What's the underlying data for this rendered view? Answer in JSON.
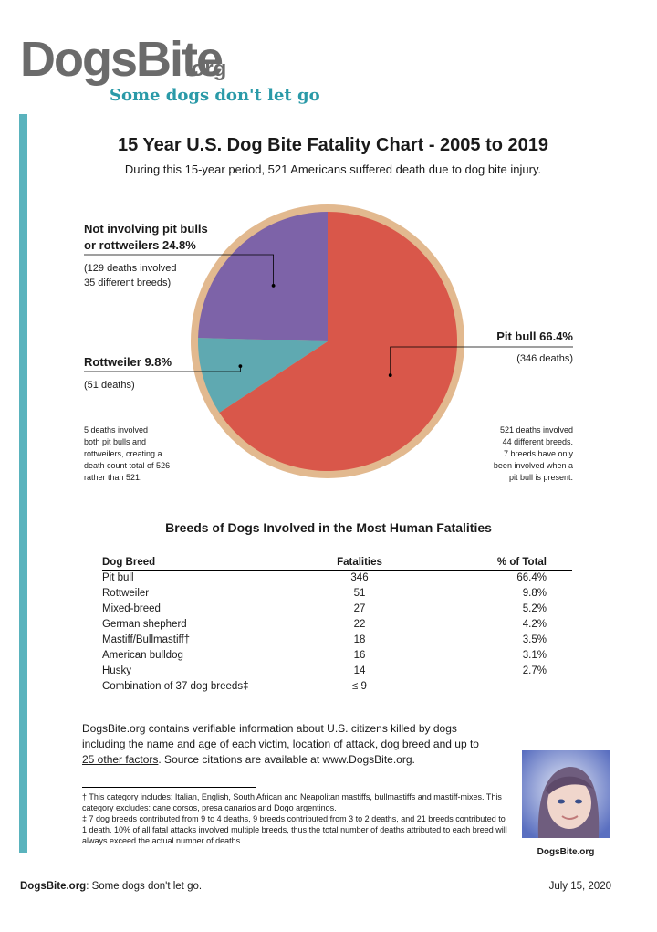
{
  "header": {
    "logo_main": "DogsBite",
    "logo_org": ".org",
    "logo_tagline": "Some dogs don't let go"
  },
  "title": "15 Year U.S. Dog Bite Fatality Chart - 2005 to 2019",
  "subtitle": "During this 15-year period, 521 Americans suffered death due to dog bite injury.",
  "chart_data": {
    "type": "pie",
    "slices": [
      {
        "label": "Pit bull 66.4%",
        "value": 66.4,
        "deaths": "(346 deaths)",
        "color": "#d9574a"
      },
      {
        "label": "Rottweiler 9.8%",
        "value": 9.8,
        "deaths": "(51 deaths)",
        "color": "#5fa9b1"
      },
      {
        "label": "Not involving pit bulls or rottweilers 24.8%",
        "value": 24.8,
        "color": "#7d63a8"
      }
    ],
    "labels": {
      "other_line1": "Not involving pit bulls",
      "other_line2": "or rottweilers 24.8%",
      "other_detail1": "(129 deaths involved",
      "other_detail2": "35 different breeds)",
      "rottweiler": "Rottweiler 9.8%",
      "rottweiler_detail": "(51 deaths)",
      "pitbull": "Pit bull 66.4%",
      "pitbull_detail": "(346 deaths)"
    },
    "notes": {
      "left": [
        "5 deaths involved",
        "both pit bulls and",
        "rottweilers, creating a",
        "death count total of 526",
        "rather than 521."
      ],
      "right": [
        "521 deaths involved",
        "44 different breeds.",
        "7 breeds have only",
        "been involved when a",
        "pit bull is present."
      ]
    },
    "ring_color": "#e2b98f"
  },
  "breeds_title": "Breeds of Dogs Involved in the Most Human Fatalities",
  "table": {
    "headers": [
      "Dog Breed",
      "Fatalities",
      "% of Total"
    ],
    "rows": [
      [
        "Pit bull",
        "346",
        "66.4%"
      ],
      [
        "Rottweiler",
        "51",
        "9.8%"
      ],
      [
        "Mixed-breed",
        "27",
        "5.2%"
      ],
      [
        "German shepherd",
        "22",
        "4.2%"
      ],
      [
        "Mastiff/Bullmastiff†",
        "18",
        "3.5%"
      ],
      [
        "American bulldog",
        "16",
        "3.1%"
      ],
      [
        "Husky",
        "14",
        "2.7%"
      ],
      [
        "Combination of 37 dog breeds‡",
        "≤ 9",
        ""
      ]
    ]
  },
  "info": {
    "text_before_link": "DogsBite.org contains verifiable information about U.S. citizens killed by dogs including the name and age of each victim, location of attack, dog breed and up to ",
    "link": "25 other factors",
    "text_after_link": ". Source citations are available at www.DogsBite.org."
  },
  "footnotes": {
    "dagger": "† This category includes: Italian, English, South African and Neapolitan mastiffs, bullmastiffs and mastiff-mixes. This category excludes: cane corsos, presa canarios and Dogo argentinos.",
    "ddagger": "‡ 7 dog breeds contributed from 9 to 4 deaths, 9 breeds contributed from 3 to 2 deaths, and 21 breeds contributed to 1 death. 10% of all fatal attacks involved multiple breeds, thus the total number of deaths attributed to each breed will always exceed the actual number of deaths."
  },
  "photo_caption": "DogsBite.org",
  "footer": {
    "brand": "DogsBite.org",
    "tagline": ": Some dogs don't let go.",
    "date": "July 15, 2020"
  }
}
